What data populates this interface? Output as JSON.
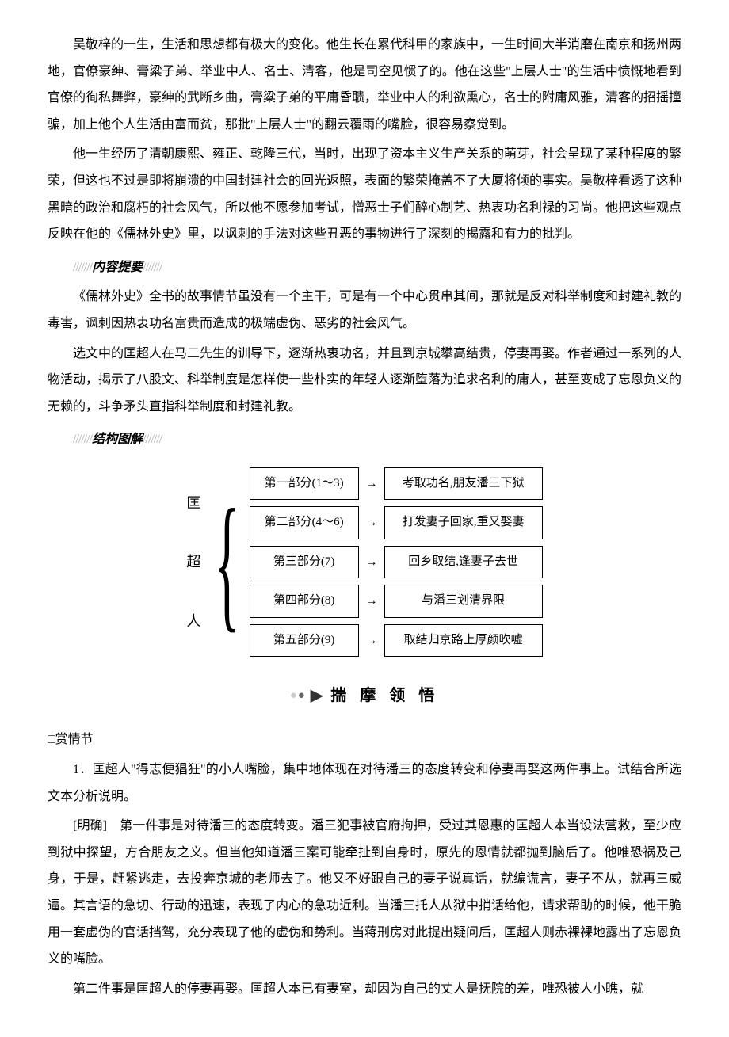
{
  "paragraphs": {
    "p1": "吴敬梓的一生，生活和思想都有极大的变化。他生长在累代科甲的家族中，一生时间大半消磨在南京和扬州两地，官僚豪绅、膏粱子弟、举业中人、名士、清客，他是司空见惯了的。他在这些\"上层人士\"的生活中愤慨地看到官僚的徇私舞弊，豪绅的武断乡曲，膏粱子弟的平庸昏聩，举业中人的利欲熏心，名士的附庸风雅，清客的招摇撞骗，加上他个人生活由富而贫，那批\"上层人士\"的翻云覆雨的嘴脸，很容易察觉到。",
    "p2": "他一生经历了清朝康熙、雍正、乾隆三代，当时，出现了资本主义生产关系的萌芽，社会呈现了某种程度的繁荣，但这也不过是即将崩溃的中国封建社会的回光返照，表面的繁荣掩盖不了大厦将倾的事实。吴敬梓看透了这种黑暗的政治和腐朽的社会风气，所以他不愿参加考试，憎恶士子们醉心制艺、热衷功名利禄的习尚。他把这些观点反映在他的《儒林外史》里，以讽刺的手法对这些丑恶的事物进行了深刻的揭露和有力的批判。",
    "summary_label": "内容提要",
    "p3": "《儒林外史》全书的故事情节虽没有一个主干，可是有一个中心贯串其间，那就是反对科举制度和封建礼教的毒害，讽刺因热衷功名富贵而造成的极端虚伪、恶劣的社会风气。",
    "p4": "选文中的匡超人在马二先生的训导下，逐渐热衷功名，并且到京城攀高结贵，停妻再娶。作者通过一系列的人物活动，揭示了八股文、科举制度是怎样使一些朴实的年轻人逐渐堕落为追求名利的庸人，甚至变成了忘恩负义的无赖的，斗争矛头直指科举制度和封建礼教。",
    "structure_label": "结构图解"
  },
  "diagram": {
    "title_chars": [
      "匡",
      "超",
      "人"
    ],
    "rows": [
      {
        "left": "第一部分(1～3)",
        "right": "考取功名,朋友潘三下狱"
      },
      {
        "left": "第二部分(4～6)",
        "right": "打发妻子回家,重又娶妻"
      },
      {
        "left": "第三部分(7)",
        "right": "回乡取结,逢妻子去世"
      },
      {
        "left": "第四部分(8)",
        "right": "与潘三划清界限"
      },
      {
        "left": "第五部分(9)",
        "right": "取结归京路上厚颜吹嘘"
      }
    ],
    "box_border_color": "#000000",
    "box_bg_color": "#ffffff",
    "font_size_box": 15
  },
  "section2": {
    "header": "揣 摩 领 悟",
    "sub": "□赏情节",
    "q1_prefix": "1．",
    "q1": "匡超人\"得志便猖狂\"的小人嘴脸，集中地体现在对待潘三的态度转变和停妻再娶这两件事上。试结合所选文本分析说明。",
    "a_label": "[明确]　",
    "a1": "第一件事是对待潘三的态度转变。潘三犯事被官府拘押，受过其恩惠的匡超人本当设法营救，至少应到狱中探望，方合朋友之义。但当他知道潘三案可能牵扯到自身时，原先的恩情就都抛到脑后了。他唯恐祸及己身，于是，赶紧逃走，去投奔京城的老师去了。他又不好跟自己的妻子说真话，就编谎言，妻子不从，就再三威逼。其言语的急切、行动的迅速，表现了内心的急功近利。当潘三托人从狱中捎话给他，请求帮助的时候，他干脆用一套虚伪的官话挡驾，充分表现了他的虚伪和势利。当蒋刑房对此提出疑问后，匡超人则赤裸裸地露出了忘恩负义的嘴脸。",
    "a2": "第二件事是匡超人的停妻再娶。匡超人本已有妻室，却因为自己的丈人是抚院的差，唯恐被人小瞧，就"
  },
  "colors": {
    "text": "#000000",
    "background": "#ffffff",
    "slash_gray": "#b0b0b0",
    "dot_light": "#cccccc",
    "dot_dark": "#666666"
  }
}
